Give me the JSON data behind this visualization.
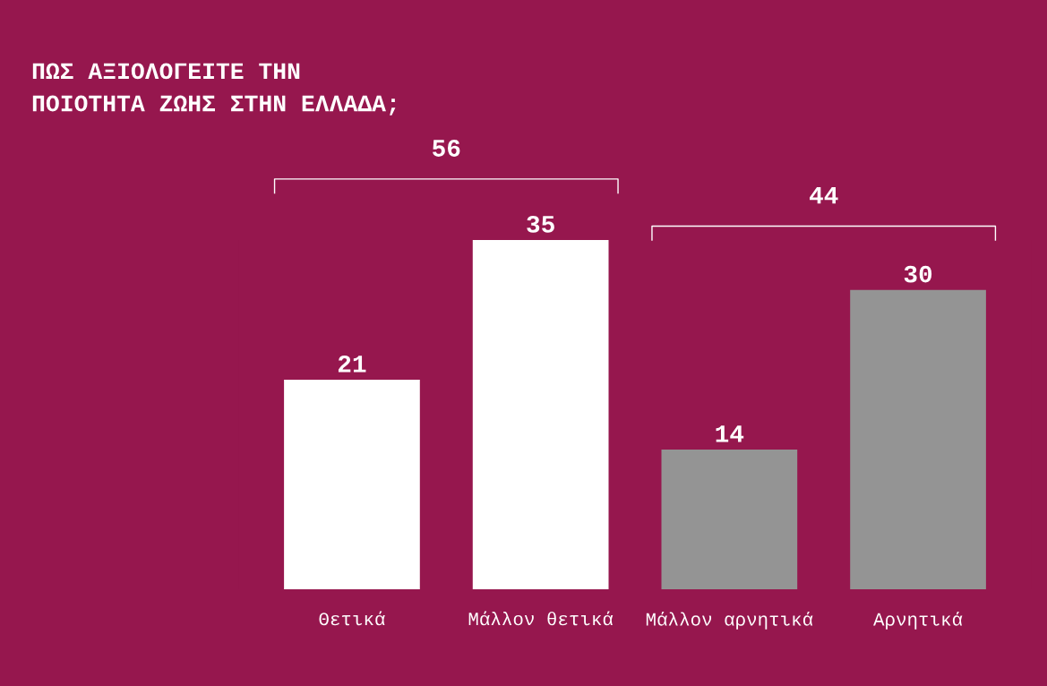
{
  "chart_data": {
    "type": "bar",
    "title": "ΠΩΣ ΑΞΙΟΛΟΓΕΙΤΕ ΤΗΝ\nΠΟΙΟΤΗΤΑ ΖΩΗΣ ΣΤΗΝ ΕΛΛΑΔΑ;",
    "categories": [
      "Θετικά",
      "Μάλλον θετικά",
      "Μάλλον αρνητικά",
      "Αρνητικά"
    ],
    "values": [
      21,
      35,
      14,
      30
    ],
    "colors": [
      "#ffffff",
      "#ffffff",
      "#949494",
      "#949494"
    ],
    "data_labels": true,
    "tick_labels": "x",
    "annotations": [
      "56",
      "44"
    ]
  }
}
